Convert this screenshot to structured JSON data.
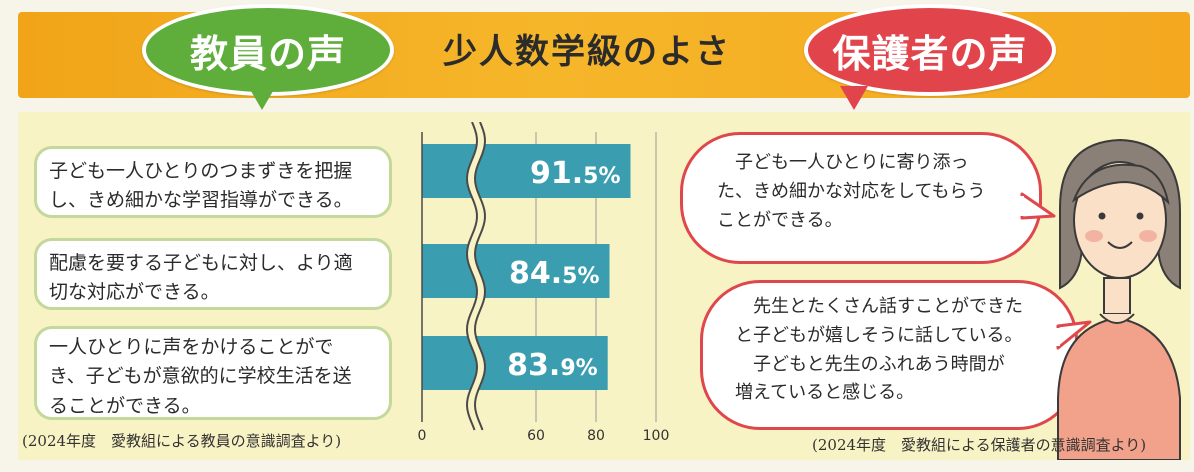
{
  "header": {
    "teacher_label": "教員の声",
    "title": "少人数学級のよさ",
    "parent_label": "保護者の声"
  },
  "teacher": {
    "items": [
      {
        "lines": [
          "子ども一人ひとりのつまずきを把握",
          "し、きめ細かな学習指導ができる。"
        ]
      },
      {
        "lines": [
          "配慮を要する子どもに対し、より適",
          "切な対応ができる。"
        ]
      },
      {
        "lines": [
          "一人ひとりに声をかけることがで",
          "き、子どもが意欲的に学校生活を送",
          "ることができる。"
        ]
      }
    ],
    "source": "(2024年度　愛教組による教員の意識調査より)"
  },
  "chart_data": {
    "type": "bar",
    "orientation": "horizontal",
    "categories": [
      "子ども一人ひとりのつまずきを把握し、きめ細かな学習指導ができる。",
      "配慮を要する子どもに対し、より適切な対応ができる。",
      "一人ひとりに声をかけることができ、子どもが意欲的に学校生活を送ることができる。"
    ],
    "values": [
      91.5,
      84.5,
      83.9
    ],
    "value_labels": [
      {
        "number": "91.",
        "decimal": "5%"
      },
      {
        "number": "84.",
        "decimal": "5%"
      },
      {
        "number": "83.",
        "decimal": "9%"
      }
    ],
    "xlim": [
      0,
      100
    ],
    "axis_break": true,
    "tick_labels": [
      "0",
      "60",
      "80",
      "100"
    ],
    "tick_values": [
      0,
      60,
      80,
      100
    ],
    "grid": true,
    "bar_color": "#3a9eb0"
  },
  "parent": {
    "bubble1_lines": [
      "子ども一人ひとりに寄り添っ",
      "た、きめ細かな対応をしてもらう",
      "ことができる。"
    ],
    "bubble2_lines": [
      "先生とたくさん話すことができた",
      "と子どもが嬉しそうに話している。",
      "子どもと先生のふれあう時間が",
      "増えていると感じる。"
    ],
    "source": "(2024年度　愛教組による保護者の意識調査より)"
  },
  "colors": {
    "banner": "#f4aa1f",
    "teacher_green": "#5fae3b",
    "parent_red": "#e2444b",
    "panel": "#f8f3c4"
  }
}
